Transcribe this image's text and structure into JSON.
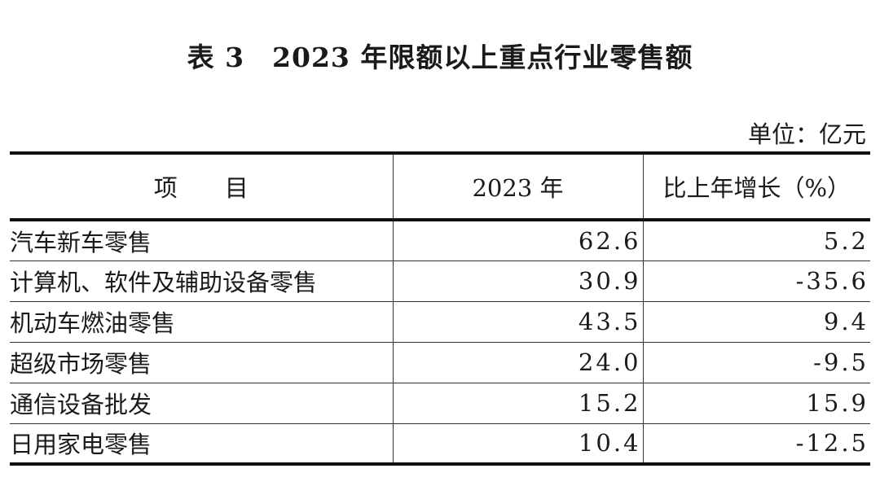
{
  "title": "表 3　2023 年限额以上重点行业零售额",
  "unit": "单位：亿元",
  "table": {
    "headers": [
      "项　　目",
      "2023 年",
      "比上年增长（%）"
    ],
    "rows": [
      [
        "汽车新车零售",
        "62.6",
        "5.2"
      ],
      [
        "计算机、软件及辅助设备零售",
        "30.9",
        "-35.6"
      ],
      [
        "机动车燃油零售",
        "43.5",
        "9.4"
      ],
      [
        "超级市场零售",
        "24.0",
        "-9.5"
      ],
      [
        "通信设备批发",
        "15.2",
        "15.9"
      ],
      [
        "日用家电零售",
        "10.4",
        "-12.5"
      ]
    ]
  }
}
